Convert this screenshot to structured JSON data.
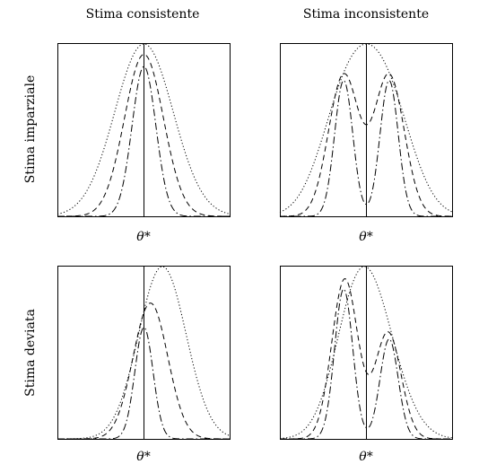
{
  "columns": [
    "Stima consistente",
    "Stima inconsistente"
  ],
  "rows": [
    "Stima imparziale",
    "Stima deviata"
  ],
  "x_tick_label": "θ*",
  "chart_data": [
    {
      "type": "line",
      "title": "",
      "xlabel": "θ*",
      "ylabel": "",
      "xlim": [
        -4,
        4
      ],
      "ylim": [
        0,
        1
      ],
      "ref_x": 0,
      "series": [
        {
          "style": "dotted",
          "components": [
            {
              "w": 1.0,
              "mu": 0.0,
              "sd": 1.35
            }
          ],
          "scale": 0.99
        },
        {
          "style": "dashed",
          "components": [
            {
              "w": 1.0,
              "mu": 0.0,
              "sd": 0.9
            }
          ],
          "scale": 0.93
        },
        {
          "style": "dashdot",
          "components": [
            {
              "w": 1.0,
              "mu": 0.0,
              "sd": 0.55
            }
          ],
          "scale": 0.86
        }
      ]
    },
    {
      "type": "line",
      "title": "",
      "xlabel": "θ*",
      "ylabel": "",
      "xlim": [
        -4,
        4
      ],
      "ylim": [
        0,
        1
      ],
      "ref_x": 0,
      "series": [
        {
          "style": "dotted",
          "components": [
            {
              "w": 0.5,
              "mu": -0.9,
              "sd": 1.2
            },
            {
              "w": 0.5,
              "mu": 0.9,
              "sd": 1.2
            }
          ],
          "scale": 0.99
        },
        {
          "style": "dashed",
          "components": [
            {
              "w": 0.5,
              "mu": -1.05,
              "sd": 0.7
            },
            {
              "w": 0.5,
              "mu": 1.05,
              "sd": 0.7
            }
          ],
          "scale": 0.82
        },
        {
          "style": "dashdot",
          "components": [
            {
              "w": 0.5,
              "mu": -1.05,
              "sd": 0.42
            },
            {
              "w": 0.5,
              "mu": 1.05,
              "sd": 0.42
            }
          ],
          "scale": 0.78
        }
      ]
    },
    {
      "type": "line",
      "title": "",
      "xlabel": "θ*",
      "ylabel": "",
      "xlim": [
        -4,
        4
      ],
      "ylim": [
        0,
        1
      ],
      "ref_x": 0,
      "series": [
        {
          "style": "dotted",
          "components": [
            {
              "w": 1.0,
              "mu": 0.85,
              "sd": 1.1
            }
          ],
          "scale": 0.99
        },
        {
          "style": "dashed",
          "components": [
            {
              "w": 1.0,
              "mu": 0.3,
              "sd": 0.8
            }
          ],
          "scale": 0.78
        },
        {
          "style": "dashdot",
          "components": [
            {
              "w": 1.0,
              "mu": 0.0,
              "sd": 0.42
            }
          ],
          "scale": 0.64
        }
      ]
    },
    {
      "type": "line",
      "title": "",
      "xlabel": "θ*",
      "ylabel": "",
      "xlim": [
        -4,
        4
      ],
      "ylim": [
        0,
        1
      ],
      "ref_x": 0,
      "series": [
        {
          "style": "dotted",
          "components": [
            {
              "w": 0.55,
              "mu": -0.5,
              "sd": 1.05
            },
            {
              "w": 0.45,
              "mu": 0.55,
              "sd": 1.15
            }
          ],
          "scale": 0.99
        },
        {
          "style": "dashed",
          "components": [
            {
              "w": 0.6,
              "mu": -1.0,
              "sd": 0.6
            },
            {
              "w": 0.4,
              "mu": 1.0,
              "sd": 0.6
            }
          ],
          "scale": 0.92
        },
        {
          "style": "dashdot",
          "components": [
            {
              "w": 0.6,
              "mu": -1.05,
              "sd": 0.42
            },
            {
              "w": 0.4,
              "mu": 1.05,
              "sd": 0.42
            }
          ],
          "scale": 0.86
        }
      ]
    }
  ]
}
